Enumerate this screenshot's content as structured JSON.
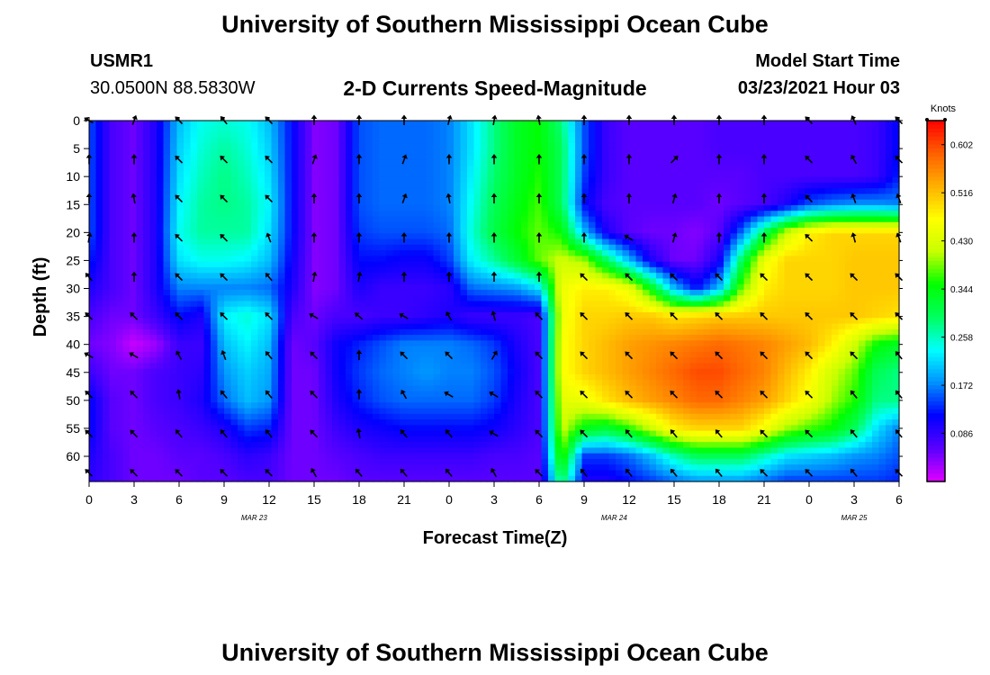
{
  "header": {
    "title": "University of Southern Mississippi Ocean Cube",
    "station_id": "USMR1",
    "coordinates": "30.0500N 88.5830W",
    "plot_title": "2-D Currents Speed-Magnitude",
    "model_start_label": "Model Start Time",
    "model_start_value": "03/23/2021 Hour 03"
  },
  "footer": {
    "title": "University of Southern Mississippi Ocean Cube"
  },
  "chart_data": {
    "type": "heatmap",
    "xlabel": "Forecast Time(Z)",
    "ylabel": "Depth (ft)",
    "xlim": [
      0,
      54
    ],
    "ylim": [
      0,
      64.5
    ],
    "x_ticks": [
      0,
      3,
      6,
      9,
      12,
      15,
      18,
      21,
      24,
      27,
      30,
      33,
      36,
      39,
      42,
      45,
      48,
      51,
      54
    ],
    "x_tick_labels": [
      "0",
      "3",
      "6",
      "9",
      "12",
      "15",
      "18",
      "21",
      "0",
      "3",
      "6",
      "9",
      "12",
      "15",
      "18",
      "21",
      "0",
      "3",
      "6"
    ],
    "date_labels": [
      {
        "hour": 11,
        "text": "MAR 23"
      },
      {
        "hour": 35,
        "text": "MAR 24"
      },
      {
        "hour": 51,
        "text": "MAR 25"
      }
    ],
    "y_ticks": [
      0,
      5,
      10,
      15,
      20,
      25,
      30,
      35,
      40,
      45,
      50,
      55,
      60
    ],
    "y_tick_labels": [
      "0",
      "5",
      "10",
      "15",
      "20",
      "25",
      "30",
      "35",
      "40",
      "45",
      "50",
      "55",
      "60"
    ],
    "colorbar": {
      "unit_label": "Knots",
      "min": 0.0,
      "max": 0.645,
      "tick_values": [
        0.086,
        0.172,
        0.258,
        0.344,
        0.43,
        0.516,
        0.602
      ],
      "tick_labels": [
        "0.086",
        "0.172",
        "0.258",
        "0.344",
        "0.430",
        "0.516",
        "0.602"
      ],
      "colors": [
        "#e000ff",
        "#5a00ff",
        "#0000ff",
        "#0090ff",
        "#00ffff",
        "#00ff60",
        "#00ff00",
        "#c8ff00",
        "#ffff00",
        "#ffb000",
        "#ff6000",
        "#ff0000"
      ]
    },
    "speed_grid": {
      "x": [
        0,
        1.5,
        3,
        4.5,
        6,
        7.5,
        9,
        10.5,
        12,
        13.5,
        15,
        16.5,
        18,
        19.5,
        21,
        22.5,
        24,
        25.5,
        27,
        28.5,
        30,
        31.5,
        33,
        34.5,
        36,
        37.5,
        39,
        40.5,
        42,
        43.5,
        45,
        46.5,
        48,
        49.5,
        51,
        52.5,
        54
      ],
      "y": [
        0,
        5,
        10,
        15,
        20,
        25,
        30,
        35,
        40,
        45,
        50,
        55,
        60,
        64.5
      ],
      "values": [
        [
          0.15,
          0.07,
          0.05,
          0.1,
          0.2,
          0.24,
          0.25,
          0.24,
          0.2,
          0.12,
          0.04,
          0.05,
          0.15,
          0.16,
          0.16,
          0.16,
          0.17,
          0.22,
          0.28,
          0.33,
          0.35,
          0.28,
          0.15,
          0.08,
          0.06,
          0.06,
          0.06,
          0.06,
          0.07,
          0.07,
          0.07,
          0.07,
          0.07,
          0.07,
          0.07,
          0.08,
          0.12
        ],
        [
          0.15,
          0.07,
          0.05,
          0.1,
          0.21,
          0.25,
          0.27,
          0.25,
          0.21,
          0.12,
          0.04,
          0.05,
          0.15,
          0.16,
          0.16,
          0.16,
          0.17,
          0.22,
          0.28,
          0.33,
          0.35,
          0.3,
          0.15,
          0.08,
          0.06,
          0.06,
          0.06,
          0.06,
          0.07,
          0.07,
          0.07,
          0.07,
          0.07,
          0.07,
          0.07,
          0.08,
          0.12
        ],
        [
          0.15,
          0.07,
          0.05,
          0.1,
          0.22,
          0.26,
          0.28,
          0.26,
          0.22,
          0.12,
          0.04,
          0.05,
          0.15,
          0.16,
          0.16,
          0.16,
          0.17,
          0.23,
          0.29,
          0.33,
          0.36,
          0.3,
          0.14,
          0.08,
          0.06,
          0.06,
          0.06,
          0.06,
          0.06,
          0.06,
          0.07,
          0.07,
          0.07,
          0.07,
          0.07,
          0.08,
          0.13
        ],
        [
          0.15,
          0.07,
          0.05,
          0.1,
          0.23,
          0.27,
          0.28,
          0.27,
          0.23,
          0.12,
          0.04,
          0.05,
          0.15,
          0.16,
          0.16,
          0.16,
          0.17,
          0.24,
          0.3,
          0.34,
          0.37,
          0.3,
          0.12,
          0.07,
          0.06,
          0.06,
          0.06,
          0.06,
          0.05,
          0.06,
          0.07,
          0.1,
          0.15,
          0.17,
          0.18,
          0.18,
          0.17
        ],
        [
          0.15,
          0.07,
          0.05,
          0.1,
          0.24,
          0.27,
          0.27,
          0.27,
          0.22,
          0.12,
          0.04,
          0.05,
          0.14,
          0.15,
          0.15,
          0.15,
          0.16,
          0.25,
          0.31,
          0.35,
          0.38,
          0.35,
          0.2,
          0.1,
          0.06,
          0.05,
          0.05,
          0.04,
          0.06,
          0.16,
          0.3,
          0.42,
          0.48,
          0.5,
          0.5,
          0.5,
          0.5
        ],
        [
          0.13,
          0.07,
          0.05,
          0.1,
          0.22,
          0.24,
          0.24,
          0.23,
          0.2,
          0.11,
          0.04,
          0.05,
          0.12,
          0.12,
          0.11,
          0.11,
          0.14,
          0.23,
          0.27,
          0.32,
          0.38,
          0.42,
          0.4,
          0.3,
          0.2,
          0.1,
          0.05,
          0.05,
          0.1,
          0.3,
          0.45,
          0.5,
          0.5,
          0.5,
          0.51,
          0.51,
          0.51
        ],
        [
          0.1,
          0.07,
          0.05,
          0.1,
          0.17,
          0.17,
          0.17,
          0.17,
          0.16,
          0.1,
          0.04,
          0.05,
          0.1,
          0.08,
          0.08,
          0.08,
          0.09,
          0.16,
          0.17,
          0.18,
          0.22,
          0.45,
          0.48,
          0.48,
          0.45,
          0.34,
          0.2,
          0.12,
          0.2,
          0.38,
          0.48,
          0.5,
          0.5,
          0.5,
          0.51,
          0.51,
          0.51
        ],
        [
          0.07,
          0.05,
          0.05,
          0.08,
          0.12,
          0.1,
          0.23,
          0.25,
          0.22,
          0.07,
          0.05,
          0.07,
          0.07,
          0.08,
          0.08,
          0.09,
          0.1,
          0.08,
          0.08,
          0.08,
          0.07,
          0.45,
          0.5,
          0.5,
          0.51,
          0.51,
          0.49,
          0.5,
          0.51,
          0.51,
          0.51,
          0.51,
          0.51,
          0.51,
          0.51,
          0.5,
          0.49
        ],
        [
          0.05,
          0.04,
          0.01,
          0.03,
          0.08,
          0.08,
          0.2,
          0.23,
          0.2,
          0.05,
          0.06,
          0.11,
          0.13,
          0.15,
          0.17,
          0.17,
          0.17,
          0.16,
          0.14,
          0.1,
          0.07,
          0.46,
          0.5,
          0.52,
          0.54,
          0.55,
          0.56,
          0.57,
          0.58,
          0.57,
          0.56,
          0.54,
          0.52,
          0.48,
          0.42,
          0.35,
          0.33
        ],
        [
          0.08,
          0.05,
          0.05,
          0.07,
          0.08,
          0.09,
          0.18,
          0.21,
          0.19,
          0.05,
          0.05,
          0.11,
          0.14,
          0.16,
          0.17,
          0.18,
          0.17,
          0.17,
          0.15,
          0.11,
          0.07,
          0.46,
          0.5,
          0.52,
          0.54,
          0.56,
          0.58,
          0.6,
          0.6,
          0.58,
          0.56,
          0.52,
          0.48,
          0.42,
          0.38,
          0.3,
          0.28
        ],
        [
          0.12,
          0.06,
          0.05,
          0.07,
          0.08,
          0.1,
          0.16,
          0.2,
          0.18,
          0.05,
          0.05,
          0.1,
          0.13,
          0.15,
          0.16,
          0.16,
          0.16,
          0.16,
          0.14,
          0.1,
          0.07,
          0.44,
          0.45,
          0.49,
          0.52,
          0.54,
          0.56,
          0.58,
          0.58,
          0.56,
          0.54,
          0.5,
          0.46,
          0.4,
          0.36,
          0.28,
          0.28
        ],
        [
          0.12,
          0.06,
          0.05,
          0.06,
          0.07,
          0.08,
          0.1,
          0.14,
          0.13,
          0.05,
          0.05,
          0.08,
          0.1,
          0.11,
          0.12,
          0.12,
          0.12,
          0.12,
          0.11,
          0.09,
          0.07,
          0.42,
          0.34,
          0.32,
          0.36,
          0.42,
          0.48,
          0.5,
          0.5,
          0.5,
          0.46,
          0.4,
          0.37,
          0.35,
          0.3,
          0.22,
          0.17
        ],
        [
          0.1,
          0.07,
          0.05,
          0.05,
          0.06,
          0.06,
          0.07,
          0.09,
          0.08,
          0.05,
          0.05,
          0.06,
          0.07,
          0.08,
          0.08,
          0.08,
          0.08,
          0.08,
          0.07,
          0.07,
          0.06,
          0.38,
          0.14,
          0.14,
          0.16,
          0.2,
          0.26,
          0.3,
          0.3,
          0.3,
          0.26,
          0.22,
          0.21,
          0.2,
          0.18,
          0.17,
          0.15
        ],
        [
          0.09,
          0.07,
          0.05,
          0.05,
          0.05,
          0.06,
          0.06,
          0.07,
          0.07,
          0.05,
          0.05,
          0.05,
          0.06,
          0.06,
          0.06,
          0.06,
          0.06,
          0.06,
          0.06,
          0.06,
          0.06,
          0.3,
          0.1,
          0.1,
          0.12,
          0.14,
          0.16,
          0.18,
          0.18,
          0.18,
          0.16,
          0.14,
          0.14,
          0.14,
          0.14,
          0.14,
          0.13
        ]
      ]
    },
    "vectors": {
      "hours": [
        0,
        3,
        6,
        9,
        12,
        15,
        18,
        21,
        24,
        27,
        30,
        33,
        36,
        39,
        42,
        45,
        48,
        51,
        54
      ],
      "depths": [
        0,
        7,
        14,
        21,
        28,
        35,
        42,
        49,
        56,
        63
      ],
      "direction_deg": [
        [
          300,
          20,
          315,
          320,
          315,
          0,
          0,
          0,
          15,
          10,
          350,
          0,
          0,
          0,
          0,
          0,
          315,
          335,
          315
        ],
        [
          0,
          0,
          315,
          315,
          315,
          20,
          0,
          20,
          0,
          0,
          0,
          0,
          0,
          45,
          0,
          0,
          315,
          330,
          315
        ],
        [
          0,
          350,
          315,
          315,
          315,
          0,
          0,
          20,
          350,
          0,
          0,
          0,
          0,
          15,
          0,
          0,
          315,
          340,
          340
        ],
        [
          10,
          0,
          315,
          315,
          340,
          0,
          0,
          0,
          0,
          0,
          0,
          0,
          300,
          15,
          0,
          0,
          315,
          345,
          340
        ],
        [
          320,
          0,
          315,
          315,
          320,
          10,
          10,
          0,
          0,
          0,
          0,
          315,
          315,
          315,
          315,
          315,
          315,
          315,
          315
        ],
        [
          315,
          315,
          315,
          315,
          315,
          300,
          310,
          300,
          330,
          345,
          315,
          315,
          315,
          315,
          315,
          315,
          315,
          315,
          315
        ],
        [
          300,
          300,
          330,
          340,
          320,
          315,
          0,
          315,
          315,
          30,
          315,
          315,
          315,
          315,
          315,
          315,
          315,
          315,
          320
        ],
        [
          315,
          315,
          350,
          320,
          320,
          315,
          0,
          330,
          300,
          300,
          315,
          315,
          315,
          315,
          315,
          315,
          315,
          320,
          320
        ],
        [
          315,
          315,
          320,
          320,
          320,
          315,
          350,
          320,
          320,
          300,
          315,
          315,
          320,
          320,
          320,
          315,
          315,
          320,
          320
        ],
        [
          315,
          315,
          315,
          315,
          315,
          330,
          320,
          320,
          320,
          330,
          315,
          320,
          320,
          320,
          320,
          315,
          315,
          320,
          315
        ]
      ]
    }
  }
}
